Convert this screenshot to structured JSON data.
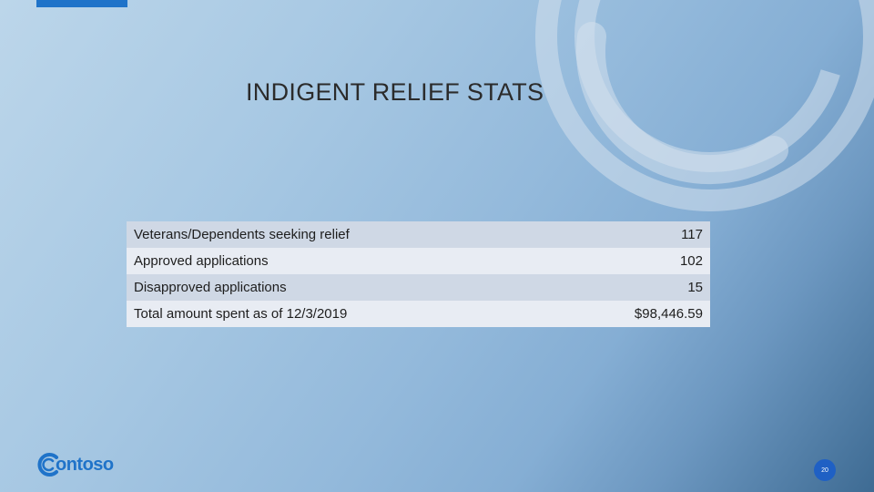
{
  "slide": {
    "title": "INDIGENT RELIEF STATS",
    "stats_table": [
      {
        "label": "Veterans/Dependents seeking relief",
        "value": "117"
      },
      {
        "label": "Approved applications",
        "value": "102"
      },
      {
        "label": "Disapproved applications",
        "value": "15"
      },
      {
        "label": "Total amount spent as of 12/3/2019",
        "value": "$98,446.59"
      }
    ],
    "logo_text": "ontoso",
    "page_number": "20"
  },
  "colors": {
    "accent": "#1f73c9",
    "badge": "#1f60c4",
    "row_dark": "#cfd8e5",
    "row_light": "#e8ecf3"
  },
  "icons": {
    "logo": "contoso-c-mark-icon",
    "decoration": "concentric-arcs-icon"
  }
}
